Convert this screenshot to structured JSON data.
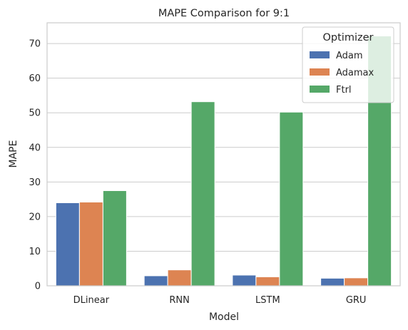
{
  "chart_data": {
    "type": "bar",
    "title": "MAPE Comparison for 9:1",
    "xlabel": "Model",
    "ylabel": "MAPE",
    "categories": [
      "DLinear",
      "RNN",
      "LSTM",
      "GRU"
    ],
    "series": [
      {
        "name": "Adam",
        "color": "#4c72b0",
        "values": [
          24.0,
          2.9,
          3.1,
          2.2
        ]
      },
      {
        "name": "Adamax",
        "color": "#dd8452",
        "values": [
          24.2,
          4.6,
          2.6,
          2.3
        ]
      },
      {
        "name": "Ftrl",
        "color": "#55a868",
        "values": [
          27.5,
          53.2,
          50.2,
          72.2
        ]
      }
    ],
    "ylim": [
      0,
      76
    ],
    "yticks": [
      0,
      10,
      20,
      30,
      40,
      50,
      60,
      70
    ],
    "grid": "y",
    "legend": {
      "title": "Optimizer",
      "placement": "top-right"
    }
  }
}
